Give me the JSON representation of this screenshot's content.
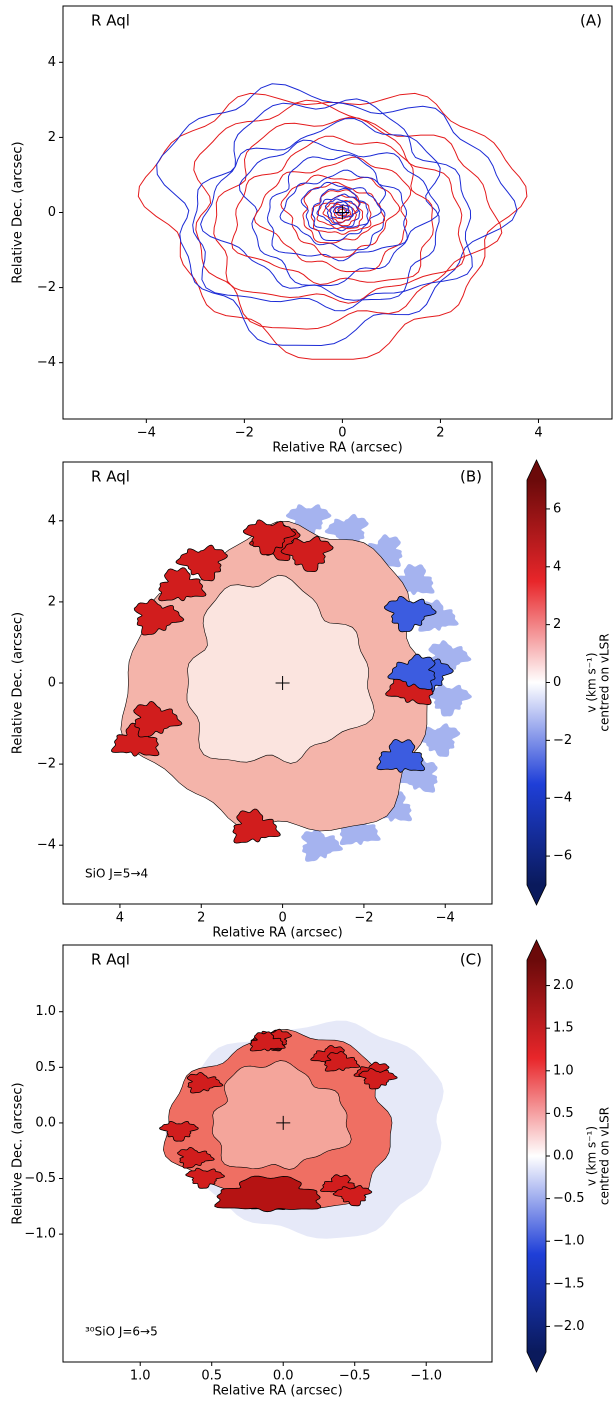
{
  "chart_data": [
    {
      "type": "contour",
      "title": "R Aql",
      "panel_label": "(A)",
      "xlabel": "Relative RA (arcsec)",
      "ylabel": "Relative Dec. (arcsec)",
      "xlim": [
        -5.7,
        5.5
      ],
      "ylim": [
        -5.5,
        5.5
      ],
      "xticks": [
        {
          "value": -4,
          "label": "−4"
        },
        {
          "value": -2,
          "label": "−2"
        },
        0,
        2,
        4
      ],
      "yticks": [
        {
          "value": -4,
          "label": "−4"
        },
        {
          "value": -2,
          "label": "−2"
        },
        0,
        2,
        4
      ],
      "colors": [
        "#e41a1c",
        "#1c2bd6"
      ]
    },
    {
      "type": "velocity_map",
      "title": "R Aql",
      "panel_label": "(B)",
      "annotation": "SiO  J=5→4",
      "xlabel": "Relative RA (arcsec)",
      "ylabel": "Relative Dec. (arcsec)",
      "xlim": [
        5.4,
        -5.15
      ],
      "ylim": [
        -5.45,
        5.45
      ],
      "xticks": [
        4,
        2,
        0,
        {
          "value": -2,
          "label": "−2"
        },
        {
          "value": -4,
          "label": "−4"
        }
      ],
      "yticks": [
        {
          "value": -4,
          "label": "−4"
        },
        {
          "value": -2,
          "label": "−2"
        },
        0,
        2,
        4
      ],
      "clim": [
        -7,
        7
      ],
      "cticks": [
        {
          "value": -6,
          "label": "−6"
        },
        {
          "value": -4,
          "label": "−4"
        },
        {
          "value": -2,
          "label": "−2"
        },
        0,
        2,
        4,
        6
      ],
      "colorbar_label": [
        "v (km s⁻¹)",
        "centred on vLSR"
      ]
    },
    {
      "type": "velocity_map",
      "title": "R Aql",
      "panel_label": "(C)",
      "annotation": "³⁰SiO  J=6→5",
      "xlabel": "Relative RA (arcsec)",
      "ylabel": "Relative Dec. (arcsec)",
      "xlim": [
        1.54,
        -1.46
      ],
      "ylim": [
        -2.15,
        1.6
      ],
      "xticks": [
        {
          "value": 1,
          "label": "1.0"
        },
        0.5,
        {
          "value": 0,
          "label": "0.0"
        },
        {
          "value": -0.5,
          "label": "−0.5"
        },
        {
          "value": -1,
          "label": "−1.0"
        }
      ],
      "yticks": [
        {
          "value": -1,
          "label": "−1.0"
        },
        {
          "value": -0.5,
          "label": "−0.5"
        },
        {
          "value": 0,
          "label": "0.0"
        },
        0.5,
        {
          "value": 1,
          "label": "1.0"
        }
      ],
      "clim": [
        -2.3,
        2.3
      ],
      "cticks": [
        {
          "value": -2,
          "label": "−2.0"
        },
        {
          "value": -1.5,
          "label": "−1.5"
        },
        {
          "value": -1,
          "label": "−1.0"
        },
        {
          "value": -0.5,
          "label": "−0.5"
        },
        {
          "value": 0,
          "label": "0.0"
        },
        0.5,
        {
          "value": 1,
          "label": "1.0"
        },
        1.5,
        {
          "value": 2,
          "label": "2.0"
        }
      ],
      "colorbar_label": [
        "v (km s⁻¹)",
        "centred on vLSR"
      ]
    }
  ]
}
